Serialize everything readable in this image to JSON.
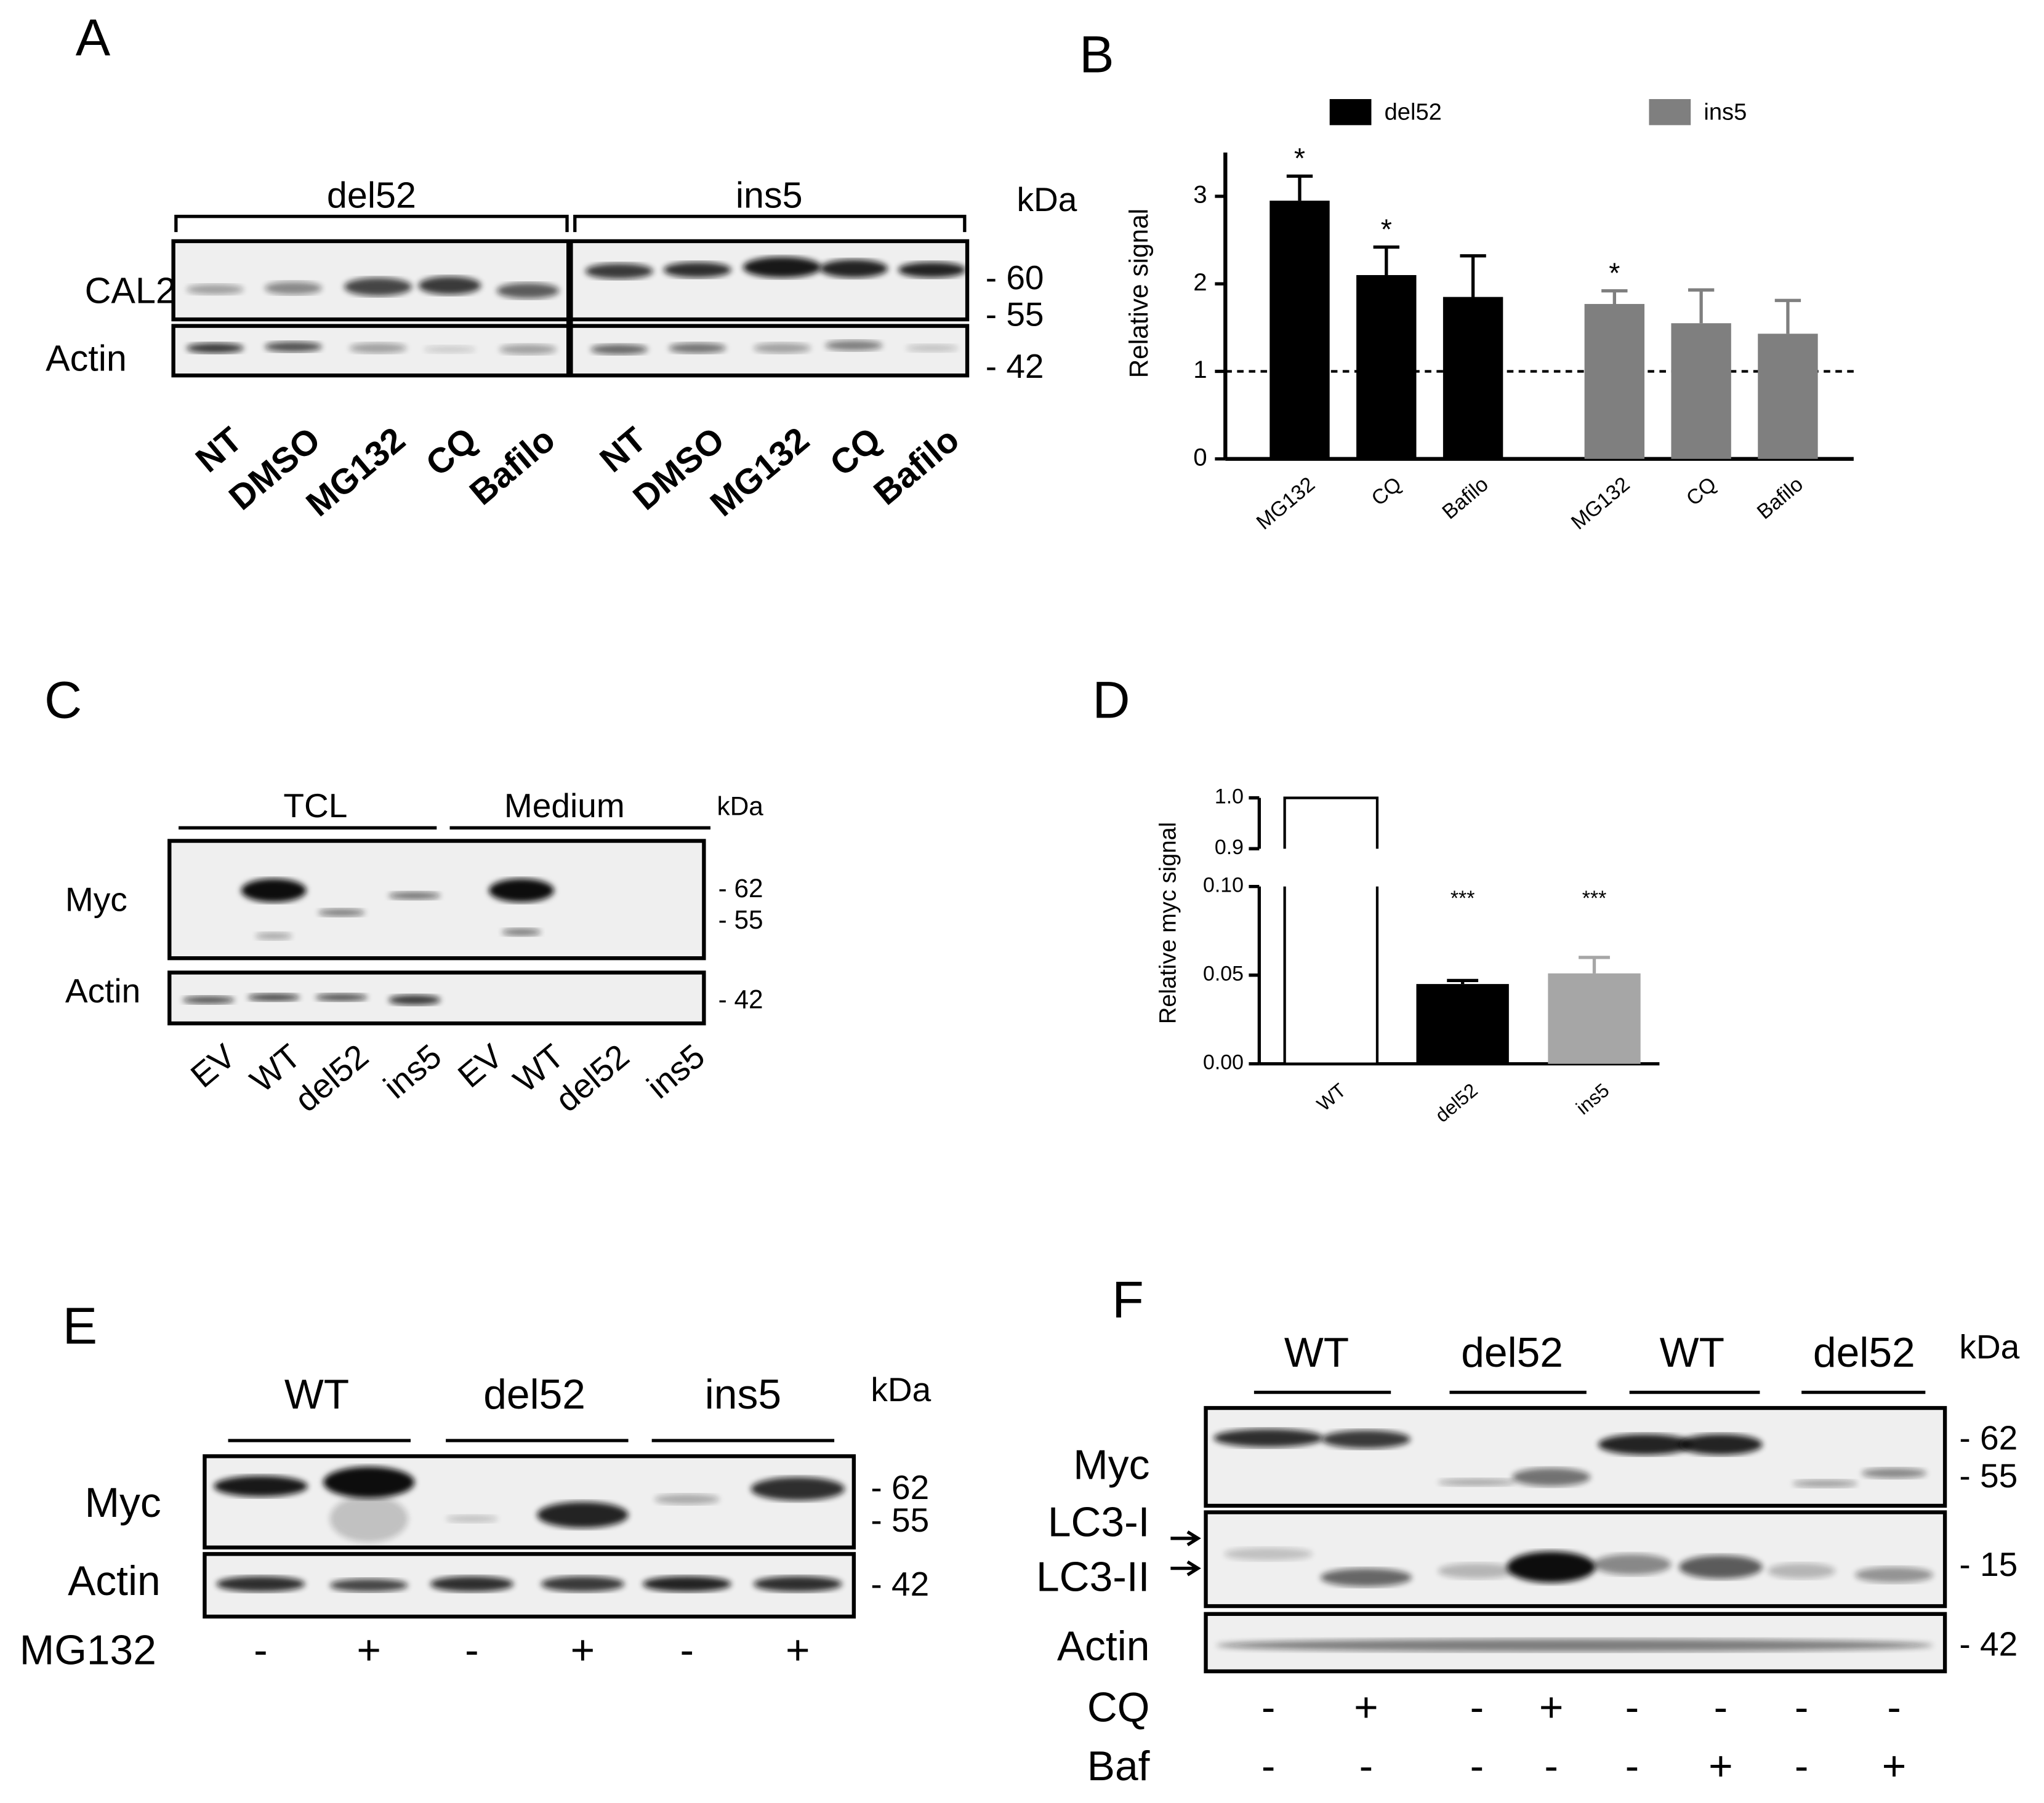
{
  "panels": {
    "A": {
      "letter": "A",
      "groups": [
        "del52",
        "ins5"
      ],
      "unit": "kDa",
      "rows": [
        "CAL2",
        "Actin"
      ],
      "markers": [
        "- 60",
        "- 55",
        "- 42"
      ],
      "lanes": [
        "NT",
        "DMSO",
        "MG132",
        "CQ",
        "Bafilo",
        "NT",
        "DMSO",
        "MG132",
        "CQ",
        "Bafilo"
      ]
    },
    "C": {
      "letter": "C",
      "groups": [
        "TCL",
        "Medium"
      ],
      "unit": "kDa",
      "rows": [
        "Myc",
        "Actin"
      ],
      "markers": [
        "- 62",
        "- 55",
        "- 42"
      ],
      "lanes": [
        "EV",
        "WT",
        "del52",
        "ins5",
        "EV",
        "WT",
        "del52",
        "ins5"
      ]
    },
    "E": {
      "letter": "E",
      "groups": [
        "WT",
        "del52",
        "ins5"
      ],
      "unit": "kDa",
      "rows": [
        "Myc",
        "Actin"
      ],
      "markers": [
        "- 62",
        "- 55",
        "- 42"
      ],
      "treatments": [
        {
          "name": "MG132",
          "signs": [
            "-",
            "+",
            "-",
            "+",
            "-",
            "+"
          ]
        }
      ]
    },
    "F": {
      "letter": "F",
      "groups": [
        "WT",
        "del52",
        "WT",
        "del52"
      ],
      "unit": "kDa",
      "rows": [
        "Myc",
        "LC3-I",
        "LC3-II",
        "Actin"
      ],
      "markers": [
        "- 62",
        "- 55",
        "- 15",
        "- 42"
      ],
      "treatments": [
        {
          "name": "CQ",
          "signs": [
            "-",
            "+",
            "-",
            "+",
            "-",
            "-",
            "-",
            "-"
          ]
        },
        {
          "name": "Baf",
          "signs": [
            "-",
            "-",
            "-",
            "-",
            "-",
            "+",
            "-",
            "+"
          ]
        }
      ]
    }
  },
  "chart_data": [
    {
      "type": "bar",
      "panel": "B",
      "ylabel": "Relative signal",
      "categories": [
        "MG132",
        "CQ",
        "Bafilo",
        "MG132",
        "CQ",
        "Bafilo"
      ],
      "series": [
        {
          "name": "del52",
          "color": "#000000",
          "values": [
            2.95,
            2.1,
            1.85,
            null,
            null,
            null
          ],
          "errors": [
            0.28,
            0.32,
            0.47,
            null,
            null,
            null
          ],
          "significance": [
            "*",
            "*",
            null,
            null,
            null,
            null
          ]
        },
        {
          "name": "ins5",
          "color": "#7f7f7f",
          "values": [
            null,
            null,
            null,
            1.77,
            1.55,
            1.43
          ],
          "errors": [
            null,
            null,
            null,
            0.15,
            0.38,
            0.38
          ],
          "significance": [
            null,
            null,
            null,
            "*",
            null,
            null
          ]
        }
      ],
      "ylim": [
        0,
        3.5
      ],
      "yticks": [
        0,
        1,
        2,
        3
      ],
      "reference_line": 1,
      "legend": "top"
    },
    {
      "type": "broken_bar",
      "panel": "D",
      "ylabel": "Relative myc signal",
      "categories": [
        "WT",
        "del52",
        "ins5"
      ],
      "values": [
        1.0,
        0.045,
        0.051
      ],
      "errors": [
        null,
        0.002,
        0.009
      ],
      "colors": [
        "#ffffff",
        "#000000",
        "#a6a6a6"
      ],
      "edgecolor": "#000000",
      "significance": [
        null,
        "***",
        "***"
      ],
      "ylim": [
        0,
        1
      ],
      "ybreak": [
        0.1,
        0.9
      ],
      "yticks": [
        {
          "value": 0,
          "label": "0.00"
        },
        0.05,
        {
          "value": 0.1,
          "label": "0.10"
        },
        0.9,
        {
          "value": 1,
          "label": "1.0"
        }
      ]
    }
  ]
}
